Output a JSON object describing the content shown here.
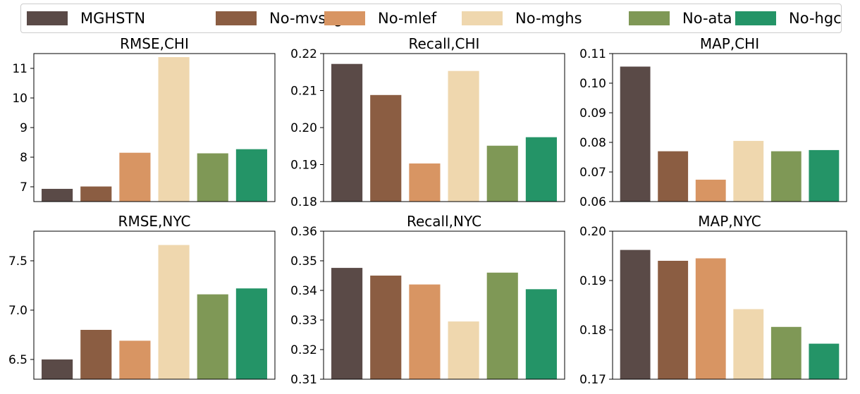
{
  "legend": {
    "items": [
      {
        "label": "MGHSTN",
        "color": "#5a4a47"
      },
      {
        "label": "No-mvssg",
        "color": "#8b5d42"
      },
      {
        "label": "No-mlef",
        "color": "#d89563"
      },
      {
        "label": "No-mghs",
        "color": "#efd7ae"
      },
      {
        "label": "No-ata",
        "color": "#7f9856"
      },
      {
        "label": "No-hgc",
        "color": "#249467"
      }
    ]
  },
  "chart_data": [
    {
      "type": "bar",
      "title": "RMSE,CHI",
      "categories": [
        "MGHSTN",
        "No-mvssg",
        "No-mlef",
        "No-mghs",
        "No-ata",
        "No-hgc"
      ],
      "values": [
        6.93,
        7.01,
        8.15,
        11.38,
        8.13,
        8.27
      ],
      "ylim": [
        6.5,
        11.5
      ],
      "yticks": [
        7,
        8,
        9,
        10,
        11
      ],
      "tick_labels": [
        "7",
        "8",
        "9",
        "10",
        "11"
      ]
    },
    {
      "type": "bar",
      "title": "Recall,CHI",
      "categories": [
        "MGHSTN",
        "No-mvssg",
        "No-mlef",
        "No-mghs",
        "No-ata",
        "No-hgc"
      ],
      "values": [
        0.2172,
        0.2088,
        0.1903,
        0.2153,
        0.1951,
        0.1974
      ],
      "ylim": [
        0.18,
        0.22
      ],
      "yticks": [
        0.18,
        0.19,
        0.2,
        0.21,
        0.22
      ],
      "tick_labels": [
        "0.18",
        "0.19",
        "0.20",
        "0.21",
        "0.22"
      ]
    },
    {
      "type": "bar",
      "title": "MAP,CHI",
      "categories": [
        "MGHSTN",
        "No-mvssg",
        "No-mlef",
        "No-mghs",
        "No-ata",
        "No-hgc"
      ],
      "values": [
        0.1056,
        0.077,
        0.0674,
        0.0805,
        0.077,
        0.0774
      ],
      "ylim": [
        0.06,
        0.11
      ],
      "yticks": [
        0.06,
        0.07,
        0.08,
        0.09,
        0.1,
        0.11
      ],
      "tick_labels": [
        "0.06",
        "0.07",
        "0.08",
        "0.09",
        "0.10",
        "0.11"
      ]
    },
    {
      "type": "bar",
      "title": "RMSE,NYC",
      "categories": [
        "MGHSTN",
        "No-mvssg",
        "No-mlef",
        "No-mghs",
        "No-ata",
        "No-hgc"
      ],
      "values": [
        6.5,
        6.8,
        6.69,
        7.66,
        7.16,
        7.22
      ],
      "ylim": [
        6.3,
        7.8
      ],
      "yticks": [
        6.5,
        7.0,
        7.5
      ],
      "tick_labels": [
        "6.5",
        "7.0",
        "7.5"
      ]
    },
    {
      "type": "bar",
      "title": "Recall,NYC",
      "categories": [
        "MGHSTN",
        "No-mvssg",
        "No-mlef",
        "No-mghs",
        "No-ata",
        "No-hgc"
      ],
      "values": [
        0.3476,
        0.345,
        0.342,
        0.3295,
        0.346,
        0.3404
      ],
      "ylim": [
        0.31,
        0.36
      ],
      "yticks": [
        0.31,
        0.32,
        0.33,
        0.34,
        0.35,
        0.36
      ],
      "tick_labels": [
        "0.31",
        "0.32",
        "0.33",
        "0.34",
        "0.35",
        "0.36"
      ]
    },
    {
      "type": "bar",
      "title": "MAP,NYC",
      "categories": [
        "MGHSTN",
        "No-mvssg",
        "No-mlef",
        "No-mghs",
        "No-ata",
        "No-hgc"
      ],
      "values": [
        0.1962,
        0.194,
        0.1945,
        0.1842,
        0.1806,
        0.1772
      ],
      "ylim": [
        0.17,
        0.2
      ],
      "yticks": [
        0.17,
        0.18,
        0.19,
        0.2
      ],
      "tick_labels": [
        "0.17",
        "0.18",
        "0.19",
        "0.20"
      ]
    }
  ]
}
